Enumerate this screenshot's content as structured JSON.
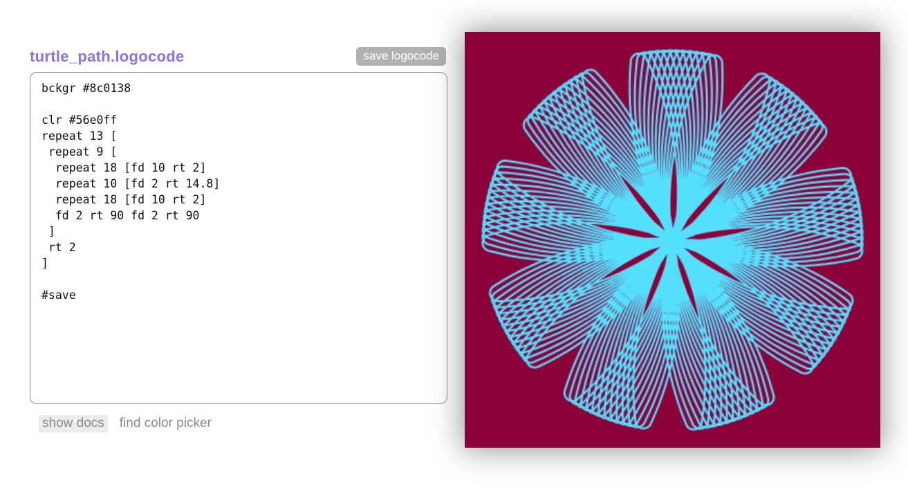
{
  "editor": {
    "title": "turtle_path.logocode",
    "save_button_label": "save logocode",
    "code": "bckgr #8c0138\n\nclr #56e0ff\nrepeat 13 [\n repeat 9 [\n  repeat 18 [fd 10 rt 2]\n  repeat 10 [fd 2 rt 14.8]\n  repeat 18 [fd 10 rt 2]\n  fd 2 rt 90 fd 2 rt 90\n ]\n rt 2\n]\n\n#save",
    "links": [
      {
        "label": "show docs"
      },
      {
        "label": "find color picker"
      }
    ]
  },
  "turtle_canvas": {
    "background_color": "#8c0138",
    "stroke_color": "#56e0ff",
    "units": 400,
    "line_width": 2,
    "start_heading_deg": 90
  },
  "colors": {
    "title_text": "#8a73e8",
    "save_button_bg": "#b1b1b1",
    "save_button_text": "#ffffff",
    "link_text": "#8a8a8a",
    "show_docs_bg": "#ececec",
    "textarea_border": "#8f8f8f"
  }
}
